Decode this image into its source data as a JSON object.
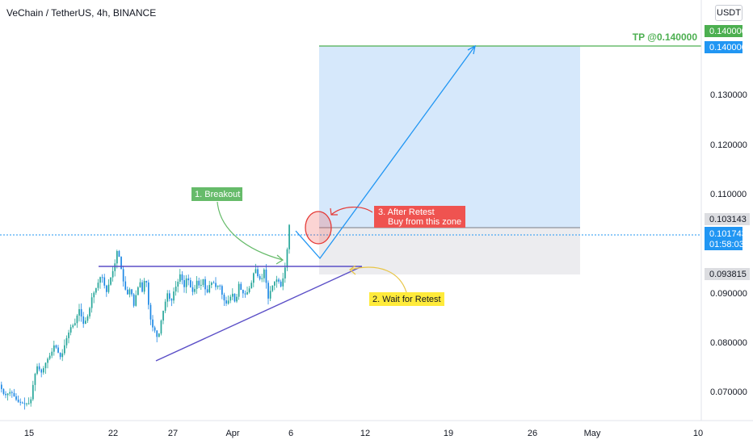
{
  "header": {
    "title": "VeChain / TetherUS, 4h, BINANCE",
    "currency_button": "USDT"
  },
  "colors": {
    "up": "#26a69a",
    "candle": "#1e88e5",
    "pattern": "#5b4fc7",
    "tp": "#4caf50",
    "target_zone": "#d6e8fb",
    "stop_zone": "#ececef",
    "annotation_green": "#66bb6a",
    "annotation_yellow": "#ffeb3b",
    "annotation_red": "#ef5350"
  },
  "chart_data": {
    "type": "candlestick",
    "symbol": "VeChain / TetherUS",
    "interval": "4h",
    "exchange": "BINANCE",
    "ylim": [
      0.0635,
      0.1455
    ],
    "y_ticks": [
      "0.070000",
      "0.080000",
      "0.090000",
      "0.110000",
      "0.120000",
      "0.130000"
    ],
    "x_ticks": [
      "15",
      "22",
      "27",
      "Apr",
      "6",
      "12",
      "19",
      "26",
      "May",
      "10"
    ],
    "price_tags": [
      {
        "label": "0.140000",
        "value": 0.1415,
        "color": "#4caf50"
      },
      {
        "label": "0.140000",
        "value": 0.1397,
        "color": "#2196f3"
      },
      {
        "label": "0.103143",
        "value": 0.10314,
        "color": "#dcdde1"
      },
      {
        "label": "0.101743",
        "value": 0.10195,
        "color": "#2196f3"
      },
      {
        "label": "01:58:03",
        "value": 0.10047,
        "color": "#2196f3"
      },
      {
        "label": "0.093815",
        "value": 0.09378,
        "color": "#dcdde1"
      }
    ],
    "current_price": 0.101743,
    "countdown": "01:58:03",
    "take_profit": 0.14,
    "entry": 0.103143,
    "stop": 0.093815,
    "annotations": {
      "tp": "TP @0.140000",
      "breakout": "1. Breakout",
      "retest": "2. Wait for Retest",
      "after_retest_line1": "3. After Retest",
      "after_retest_line2": "Buy from this zone"
    },
    "price_path": [
      [
        0,
        0.0705
      ],
      [
        6,
        0.0683
      ],
      [
        14,
        0.0692
      ],
      [
        22,
        0.0672
      ],
      [
        30,
        0.0668
      ],
      [
        38,
        0.0669
      ],
      [
        42,
        0.0712
      ],
      [
        46,
        0.0742
      ],
      [
        52,
        0.0728
      ],
      [
        58,
        0.0752
      ],
      [
        64,
        0.0766
      ],
      [
        68,
        0.0785
      ],
      [
        72,
        0.0769
      ],
      [
        76,
        0.0756
      ],
      [
        82,
        0.0792
      ],
      [
        88,
        0.0817
      ],
      [
        94,
        0.0826
      ],
      [
        98,
        0.0855
      ],
      [
        104,
        0.0822
      ],
      [
        110,
        0.0842
      ],
      [
        114,
        0.0875
      ],
      [
        120,
        0.0896
      ],
      [
        126,
        0.0921
      ],
      [
        132,
        0.0884
      ],
      [
        138,
        0.0917
      ],
      [
        142,
        0.0935
      ],
      [
        146,
        0.0972
      ],
      [
        150,
        0.0935
      ],
      [
        154,
        0.0898
      ],
      [
        158,
        0.088
      ],
      [
        162,
        0.0895
      ],
      [
        166,
        0.0858
      ],
      [
        170,
        0.089
      ],
      [
        174,
        0.0905
      ],
      [
        178,
        0.0875
      ],
      [
        180,
        0.0934
      ],
      [
        184,
        0.0864
      ],
      [
        188,
        0.082
      ],
      [
        192,
        0.0811
      ],
      [
        196,
        0.0792
      ],
      [
        200,
        0.0831
      ],
      [
        204,
        0.086
      ],
      [
        208,
        0.0885
      ],
      [
        212,
        0.0863
      ],
      [
        216,
        0.089
      ],
      [
        220,
        0.0902
      ],
      [
        224,
        0.0924
      ],
      [
        228,
        0.0892
      ],
      [
        232,
        0.0918
      ],
      [
        236,
        0.0896
      ],
      [
        240,
        0.0882
      ],
      [
        244,
        0.0908
      ],
      [
        248,
        0.0894
      ],
      [
        252,
        0.0911
      ],
      [
        256,
        0.0879
      ],
      [
        260,
        0.0901
      ],
      [
        264,
        0.0906
      ],
      [
        268,
        0.0894
      ],
      [
        272,
        0.0902
      ],
      [
        276,
        0.0876
      ],
      [
        280,
        0.0862
      ],
      [
        284,
        0.0871
      ],
      [
        288,
        0.0884
      ],
      [
        292,
        0.0861
      ],
      [
        296,
        0.0902
      ],
      [
        300,
        0.0884
      ],
      [
        304,
        0.0881
      ],
      [
        308,
        0.0888
      ],
      [
        312,
        0.0905
      ],
      [
        316,
        0.0935
      ],
      [
        320,
        0.0914
      ],
      [
        324,
        0.0908
      ],
      [
        328,
        0.0934
      ],
      [
        332,
        0.087
      ],
      [
        336,
        0.0893
      ],
      [
        340,
        0.0905
      ],
      [
        344,
        0.0912
      ],
      [
        348,
        0.0896
      ],
      [
        352,
        0.092
      ],
      [
        355,
        0.0951
      ],
      [
        357,
        0.0991
      ],
      [
        359,
        0.1025
      ]
    ],
    "projection": [
      [
        366,
        0.1002
      ],
      [
        396,
        0.095
      ],
      [
        588,
        0.14
      ]
    ]
  }
}
